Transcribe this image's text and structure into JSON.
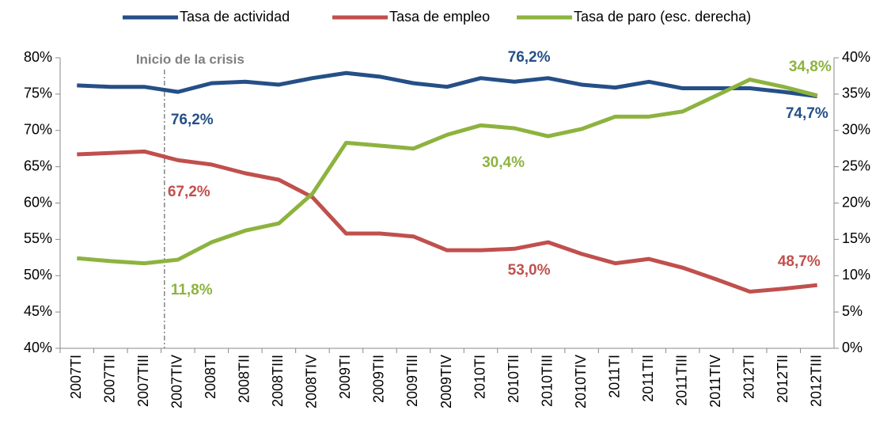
{
  "chart_data": {
    "type": "line",
    "categories": [
      "2007TI",
      "2007TII",
      "2007TIII",
      "2007TIV",
      "2008TI",
      "2008TII",
      "2008TIII",
      "2008TIV",
      "2009TI",
      "2009TII",
      "2009TIII",
      "2009TIV",
      "2010TI",
      "2010TII",
      "2010TIII",
      "2010TIV",
      "2011TI",
      "2011TII",
      "2011TIII",
      "2011TIV",
      "2012TI",
      "2012TII",
      "2012TIII"
    ],
    "series": [
      {
        "name": "Tasa de actividad",
        "color": "#254f86",
        "values": [
          76.2,
          76.0,
          76.0,
          75.3,
          76.5,
          76.7,
          76.3,
          77.2,
          77.9,
          77.4,
          76.5,
          76.0,
          77.2,
          76.7,
          77.2,
          76.3,
          75.9,
          76.7,
          75.8,
          75.8,
          75.8,
          75.3,
          74.7
        ]
      },
      {
        "name": "Tasa de empleo",
        "color": "#c0504d",
        "values": [
          66.7,
          66.9,
          67.1,
          65.9,
          65.3,
          64.1,
          63.2,
          60.8,
          55.8,
          55.8,
          55.4,
          53.5,
          53.5,
          53.7,
          54.6,
          53.0,
          51.7,
          52.3,
          51.1,
          49.5,
          47.8,
          48.2,
          48.7
        ]
      },
      {
        "name": "Tasa de paro (esc. derecha)",
        "color": "#8db33f",
        "axis": "y2",
        "values": [
          12.4,
          12.0,
          11.7,
          12.2,
          14.6,
          16.2,
          17.2,
          21.3,
          28.3,
          27.9,
          27.5,
          29.4,
          30.7,
          30.3,
          29.2,
          30.2,
          31.9,
          31.9,
          32.6,
          34.8,
          37.0,
          36.0,
          34.8
        ]
      }
    ],
    "ylim": [
      40,
      80
    ],
    "yticks": [
      {
        "value": 40,
        "label": "40%"
      },
      {
        "value": 45,
        "label": "45%"
      },
      {
        "value": 50,
        "label": "50%"
      },
      {
        "value": 55,
        "label": "55%"
      },
      {
        "value": 60,
        "label": "60%"
      },
      {
        "value": 65,
        "label": "65%"
      },
      {
        "value": 70,
        "label": "70%"
      },
      {
        "value": 75,
        "label": "75%"
      },
      {
        "value": 80,
        "label": "80%"
      }
    ],
    "y2lim": [
      0,
      40
    ],
    "y2ticks": [
      {
        "value": 0,
        "label": "0%"
      },
      {
        "value": 5,
        "label": "5%"
      },
      {
        "value": 10,
        "label": "10%"
      },
      {
        "value": 15,
        "label": "15%"
      },
      {
        "value": 20,
        "label": "20%"
      },
      {
        "value": 25,
        "label": "25%"
      },
      {
        "value": 30,
        "label": "30%"
      },
      {
        "value": 35,
        "label": "35%"
      },
      {
        "value": 40,
        "label": "40%"
      }
    ],
    "annotations": [
      "Inicio de la crisis",
      "76,2%",
      "67,2%",
      "11,8%",
      "76,2%",
      "30,4%",
      "53,0%",
      "34,8%",
      "74,7%",
      "48,7%"
    ],
    "legend": "top"
  }
}
